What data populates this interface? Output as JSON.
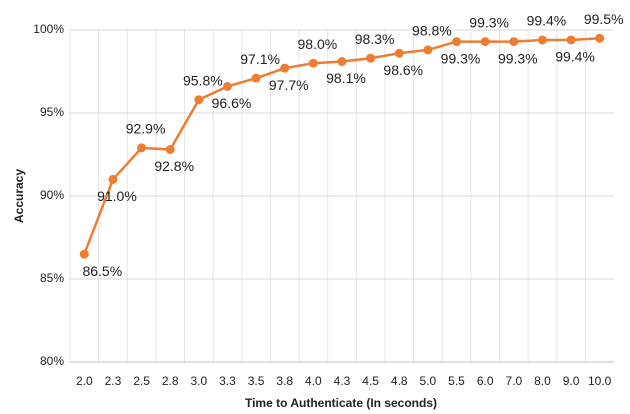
{
  "chart_data": {
    "type": "line",
    "x_label": "Time to Authenticate (In seconds)",
    "y_label": "Accuracy",
    "categories": [
      "2.0",
      "2.3",
      "2.5",
      "2.8",
      "3.0",
      "3.3",
      "3.5",
      "3.8",
      "4.0",
      "4.3",
      "4.5",
      "4.8",
      "5.0",
      "5.5",
      "6.0",
      "7.0",
      "8.0",
      "9.0",
      "10.0"
    ],
    "series": [
      {
        "color": "#ed7d31",
        "values": [
          86.5,
          91.0,
          92.9,
          92.8,
          95.8,
          96.6,
          97.1,
          97.7,
          98.0,
          98.1,
          98.3,
          98.6,
          98.8,
          99.3,
          99.3,
          99.3,
          99.4,
          99.4,
          99.5
        ],
        "value_labels": [
          "86.5%",
          "91.0%",
          "92.9%",
          "92.8%",
          "95.8%",
          "96.6%",
          "97.1%",
          "97.7%",
          "98.0%",
          "98.1%",
          "98.3%",
          "98.6%",
          "98.8%",
          "99.3%",
          "99.3%",
          "99.3%",
          "99.4%",
          "99.4%",
          "99.5%"
        ]
      }
    ],
    "ylim": [
      80,
      100
    ],
    "yticks": [
      {
        "value": 80,
        "label": "80%"
      },
      {
        "value": 85,
        "label": "85%"
      },
      {
        "value": 90,
        "label": "90%"
      },
      {
        "value": 95,
        "label": "95%"
      },
      {
        "value": 100,
        "label": "100%"
      }
    ],
    "grid": true
  }
}
